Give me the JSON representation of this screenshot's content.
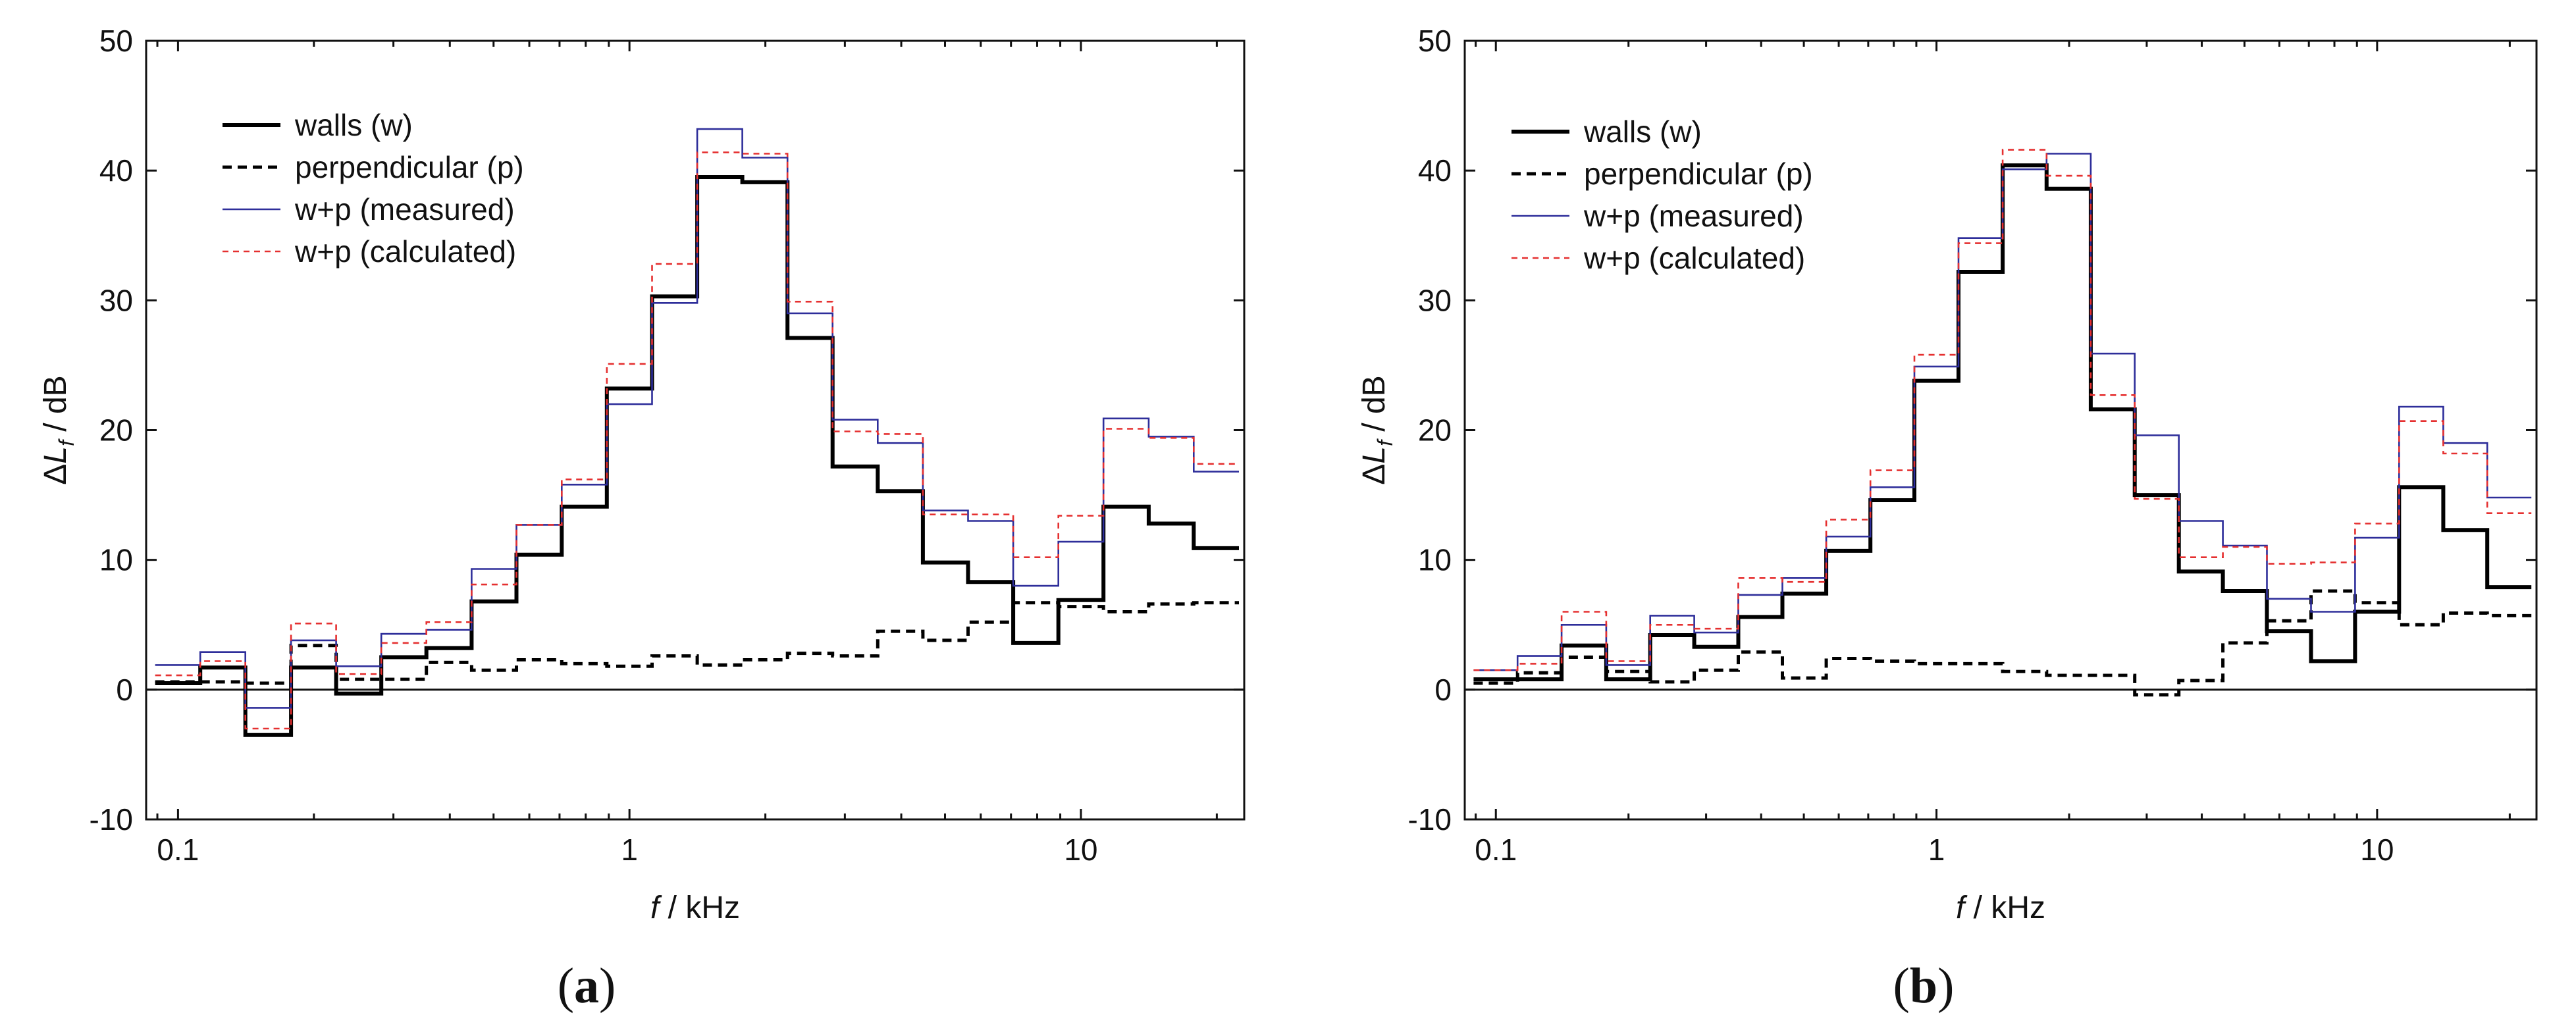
{
  "chart_data": [
    {
      "panel": "a",
      "type": "step",
      "xlabel_italic": "f",
      "xlabel_rest": " / kHz",
      "ylabel_delta": "Δ",
      "ylabel_var": "L",
      "ylabel_sub": "f",
      "ylabel_rest": " / dB",
      "xscale": "log",
      "xlim": [
        0.085,
        23
      ],
      "ylim": [
        -10,
        50
      ],
      "xticks": [
        {
          "value": 0.1,
          "label": "0.1"
        },
        {
          "value": 1,
          "label": "1"
        },
        {
          "value": 10,
          "label": "10"
        }
      ],
      "yticks": [
        {
          "value": -10,
          "label": "-10"
        },
        {
          "value": 0,
          "label": "0"
        },
        {
          "value": 10,
          "label": "10"
        },
        {
          "value": 20,
          "label": "20"
        },
        {
          "value": 30,
          "label": "30"
        },
        {
          "value": 40,
          "label": "40"
        },
        {
          "value": 50,
          "label": "50"
        }
      ],
      "bands_hz_edges_kHz": [
        0.089,
        0.112,
        0.141,
        0.178,
        0.224,
        0.282,
        0.355,
        0.447,
        0.562,
        0.708,
        0.891,
        1.122,
        1.413,
        1.778,
        2.239,
        2.818,
        3.548,
        4.467,
        5.623,
        7.079,
        8.913,
        11.22,
        14.13,
        17.78,
        22.39
      ],
      "legend_position": "top-left",
      "series": [
        {
          "name": "walls (w)",
          "color": "#000000",
          "style": "solid-thick",
          "values": [
            0.5,
            1.7,
            -3.5,
            1.7,
            -0.3,
            2.5,
            3.2,
            6.8,
            10.4,
            14.1,
            23.2,
            30.3,
            39.5,
            39.1,
            27.1,
            17.2,
            15.3,
            9.8,
            8.3,
            3.6,
            6.9,
            14.1,
            12.8,
            10.9
          ]
        },
        {
          "name": "perpendicular (p)",
          "color": "#000000",
          "style": "dashed",
          "values": [
            0.6,
            0.6,
            0.5,
            3.4,
            0.8,
            0.8,
            2.1,
            1.5,
            2.3,
            2.0,
            1.8,
            2.6,
            1.9,
            2.3,
            2.8,
            2.6,
            4.5,
            3.8,
            5.2,
            6.7,
            6.4,
            6.0,
            6.6,
            6.7
          ]
        },
        {
          "name": "w+p (measured)",
          "color": "#2e2e9a",
          "style": "solid-thin",
          "values": [
            1.9,
            2.9,
            -1.4,
            3.8,
            1.8,
            4.3,
            4.6,
            9.3,
            12.7,
            15.8,
            22.0,
            29.8,
            43.2,
            41.0,
            29.0,
            20.8,
            19.0,
            13.8,
            13.0,
            8.0,
            11.4,
            20.9,
            19.5,
            16.8
          ]
        },
        {
          "name": "w+p (calculated)",
          "color": "#e53030",
          "style": "dotted",
          "values": [
            1.1,
            2.2,
            -3.0,
            5.1,
            1.2,
            3.6,
            5.2,
            8.1,
            12.7,
            16.2,
            25.1,
            32.8,
            41.4,
            41.3,
            29.9,
            19.9,
            19.7,
            13.5,
            13.5,
            10.2,
            13.4,
            20.1,
            19.4,
            17.4
          ]
        }
      ]
    },
    {
      "panel": "b",
      "type": "step",
      "xlabel_italic": "f",
      "xlabel_rest": " / kHz",
      "ylabel_delta": "Δ",
      "ylabel_var": "L",
      "ylabel_sub": "f",
      "ylabel_rest": " / dB",
      "xscale": "log",
      "xlim": [
        0.085,
        23
      ],
      "ylim": [
        -10,
        50
      ],
      "xticks": [
        {
          "value": 0.1,
          "label": "0.1"
        },
        {
          "value": 1,
          "label": "1"
        },
        {
          "value": 10,
          "label": "10"
        }
      ],
      "yticks": [
        {
          "value": -10,
          "label": "-10"
        },
        {
          "value": 0,
          "label": "0"
        },
        {
          "value": 10,
          "label": "10"
        },
        {
          "value": 20,
          "label": "20"
        },
        {
          "value": 30,
          "label": "30"
        },
        {
          "value": 40,
          "label": "40"
        },
        {
          "value": 50,
          "label": "50"
        }
      ],
      "bands_hz_edges_kHz": [
        0.089,
        0.112,
        0.141,
        0.178,
        0.224,
        0.282,
        0.355,
        0.447,
        0.562,
        0.708,
        0.891,
        1.122,
        1.413,
        1.778,
        2.239,
        2.818,
        3.548,
        4.467,
        5.623,
        7.079,
        8.913,
        11.22,
        14.13,
        17.78,
        22.39
      ],
      "legend_position": "top-left",
      "series": [
        {
          "name": "walls (w)",
          "color": "#000000",
          "style": "solid-thick",
          "values": [
            0.8,
            0.8,
            3.4,
            0.8,
            4.2,
            3.3,
            5.6,
            7.4,
            10.7,
            14.6,
            23.8,
            32.2,
            40.4,
            38.6,
            21.6,
            15.0,
            9.1,
            7.6,
            4.5,
            2.2,
            6.0,
            15.6,
            12.3,
            7.9
          ]
        },
        {
          "name": "perpendicular (p)",
          "color": "#000000",
          "style": "dashed",
          "values": [
            0.5,
            1.3,
            2.5,
            1.4,
            0.6,
            1.5,
            2.9,
            0.9,
            2.4,
            2.2,
            2.0,
            2.0,
            1.4,
            1.1,
            1.1,
            -0.4,
            0.7,
            3.6,
            5.3,
            7.6,
            6.7,
            5.0,
            5.9,
            5.7
          ]
        },
        {
          "name": "w+p (measured)",
          "color": "#2e2e9a",
          "style": "solid-thin",
          "values": [
            1.5,
            2.6,
            5.0,
            1.9,
            5.7,
            4.4,
            7.3,
            8.6,
            11.8,
            15.6,
            24.9,
            34.8,
            40.1,
            41.3,
            25.9,
            19.6,
            13.0,
            11.1,
            7.0,
            6.0,
            11.7,
            21.8,
            19.0,
            14.8
          ]
        },
        {
          "name": "w+p (calculated)",
          "color": "#e53030",
          "style": "dotted",
          "values": [
            1.5,
            2.0,
            6.0,
            2.2,
            5.0,
            4.7,
            8.6,
            8.3,
            13.1,
            16.9,
            25.8,
            34.4,
            41.6,
            39.6,
            22.7,
            14.7,
            10.2,
            11.0,
            9.7,
            9.8,
            12.8,
            20.7,
            18.2,
            13.6
          ]
        }
      ]
    }
  ],
  "panel_labels": [
    "a",
    "b"
  ]
}
